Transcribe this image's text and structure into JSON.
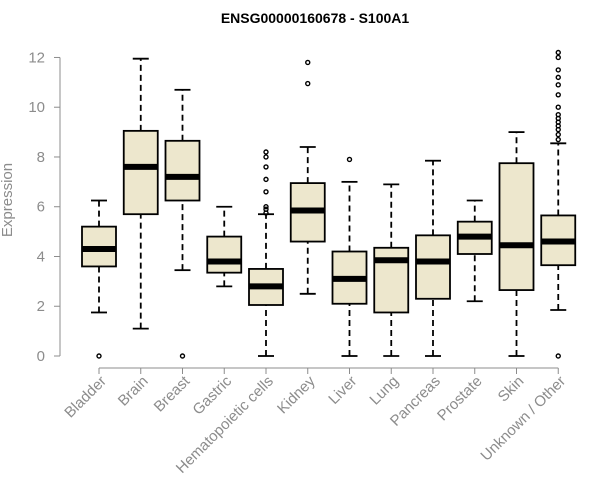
{
  "colors": {
    "box_fill": "#ede7cd",
    "stroke": "#000000",
    "axis_text": "#8c8c8c",
    "axis_line": "#8c8c8c"
  },
  "chart_data": {
    "type": "boxplot",
    "title": "ENSG00000160678 - S100A1",
    "xlabel": "",
    "ylabel": "Expression",
    "ylim": [
      0,
      12.3
    ],
    "yticks": [
      0,
      2,
      4,
      6,
      8,
      10,
      12
    ],
    "yticklabels": [
      "0",
      "2",
      "4",
      "6",
      "8",
      "10",
      "12"
    ],
    "categories": [
      "Bladder",
      "Brain",
      "Breast",
      "Gastric",
      "Hematopoietic cells",
      "Kidney",
      "Liver",
      "Lung",
      "Pancreas",
      "Prostate",
      "Skin",
      "Unknown / Other"
    ],
    "boxes": [
      {
        "whisker_low": 1.75,
        "q1": 3.6,
        "median": 4.3,
        "q3": 5.2,
        "whisker_high": 6.25,
        "outliers": [
          0.0
        ]
      },
      {
        "whisker_low": 1.1,
        "q1": 5.7,
        "median": 7.6,
        "q3": 9.05,
        "whisker_high": 11.95,
        "outliers": []
      },
      {
        "whisker_low": 3.45,
        "q1": 6.25,
        "median": 7.2,
        "q3": 8.65,
        "whisker_high": 10.7,
        "outliers": [
          0.0
        ]
      },
      {
        "whisker_low": 2.8,
        "q1": 3.35,
        "median": 3.8,
        "q3": 4.8,
        "whisker_high": 6.0,
        "outliers": []
      },
      {
        "whisker_low": 0.0,
        "q1": 2.05,
        "median": 2.8,
        "q3": 3.5,
        "whisker_high": 5.7,
        "outliers": [
          5.75,
          5.9,
          6.0,
          6.6,
          7.1,
          7.6,
          8.0,
          8.2
        ]
      },
      {
        "whisker_low": 2.5,
        "q1": 4.6,
        "median": 5.85,
        "q3": 6.95,
        "whisker_high": 8.4,
        "outliers": [
          10.95,
          11.8
        ]
      },
      {
        "whisker_low": 0.0,
        "q1": 2.1,
        "median": 3.1,
        "q3": 4.2,
        "whisker_high": 7.0,
        "outliers": [
          7.9
        ]
      },
      {
        "whisker_low": 0.0,
        "q1": 1.75,
        "median": 3.85,
        "q3": 4.35,
        "whisker_high": 6.9,
        "outliers": []
      },
      {
        "whisker_low": 0.0,
        "q1": 2.3,
        "median": 3.8,
        "q3": 4.85,
        "whisker_high": 7.85,
        "outliers": []
      },
      {
        "whisker_low": 2.2,
        "q1": 4.1,
        "median": 4.8,
        "q3": 5.4,
        "whisker_high": 6.25,
        "outliers": []
      },
      {
        "whisker_low": 0.0,
        "q1": 2.65,
        "median": 4.45,
        "q3": 7.75,
        "whisker_high": 9.0,
        "outliers": []
      },
      {
        "whisker_low": 1.85,
        "q1": 3.65,
        "median": 4.6,
        "q3": 5.65,
        "whisker_high": 8.55,
        "outliers": [
          0.0,
          8.7,
          8.9,
          9.1,
          9.25,
          9.4,
          9.55,
          9.7,
          10.0,
          10.5,
          10.9,
          11.2,
          11.5,
          12.0,
          12.2
        ]
      }
    ]
  }
}
